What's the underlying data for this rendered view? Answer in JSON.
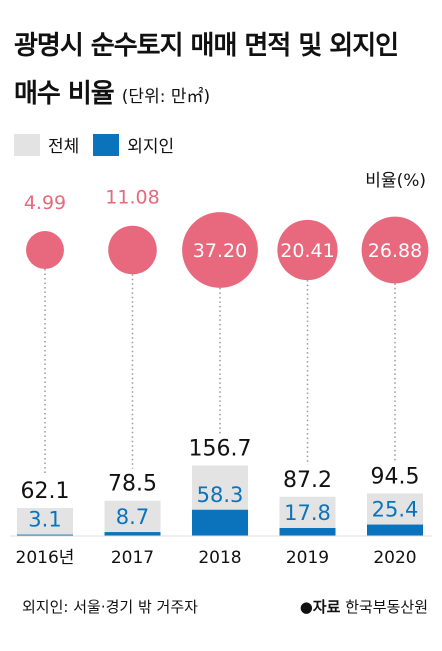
{
  "title_line1": "광명시 순수토지 매매 면적 및 외지인",
  "title_line2": "매수 비율",
  "unit": "(단위: 만㎡)",
  "legend": {
    "total": "전체",
    "outsider": "외지인"
  },
  "ratio_label": "비율(%)",
  "footer": {
    "note": "외지인: 서울·경기 밖 거주자",
    "source_bullet": "●",
    "source_key": "자료",
    "source_value": "한국부동산원"
  },
  "colors": {
    "total": "#e3e3e3",
    "outsider": "#0a73bb",
    "ratio": "#e8697d",
    "dotted": "#999999"
  },
  "chart_data": {
    "type": "bar",
    "categories": [
      "2016년",
      "2017",
      "2018",
      "2019",
      "2020"
    ],
    "series": [
      {
        "name": "전체",
        "values": [
          62.1,
          78.5,
          156.7,
          87.2,
          94.5
        ],
        "labels": [
          "62.1",
          "78.5",
          "156.7",
          "87.2",
          "94.5"
        ]
      },
      {
        "name": "외지인",
        "values": [
          3.1,
          8.7,
          58.3,
          17.8,
          25.4
        ],
        "labels": [
          "3.1",
          "8.7",
          "58.3",
          "17.8",
          "25.4"
        ]
      },
      {
        "name": "비율(%)",
        "values": [
          4.99,
          11.08,
          37.2,
          20.41,
          26.88
        ],
        "labels": [
          "4.99",
          "11.08",
          "37.20",
          "20.41",
          "26.88"
        ]
      }
    ]
  }
}
